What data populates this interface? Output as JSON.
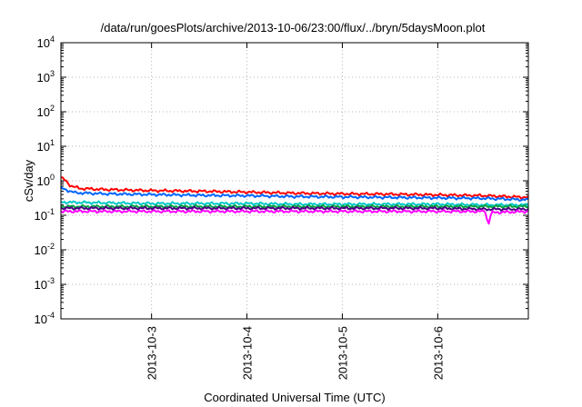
{
  "chart_data": {
    "type": "line",
    "title": "/data/run/goesPlots/archive/2013-10-06/23:00/flux/../bryn/5daysMoon.plot",
    "xlabel": "Coordinated Universal Time (UTC)",
    "ylabel": "cSv/day",
    "y_scale": "log",
    "ylim": [
      0.0001,
      10000
    ],
    "y_ticks": [
      {
        "value": 0.0001,
        "base": "10",
        "exp": "-4"
      },
      {
        "value": 0.001,
        "base": "10",
        "exp": "-3"
      },
      {
        "value": 0.01,
        "base": "10",
        "exp": "-2"
      },
      {
        "value": 0.1,
        "base": "10",
        "exp": "-1"
      },
      {
        "value": 1,
        "base": "10",
        "exp": "0"
      },
      {
        "value": 10,
        "base": "10",
        "exp": "1"
      },
      {
        "value": 100,
        "base": "10",
        "exp": "2"
      },
      {
        "value": 1000,
        "base": "10",
        "exp": "3"
      },
      {
        "value": 10000,
        "base": "10",
        "exp": "4"
      }
    ],
    "xlim_days": [
      2.05,
      6.95
    ],
    "x_ticks": [
      {
        "value": 3,
        "label": "2013-10-3"
      },
      {
        "value": 4,
        "label": "2013-10-4"
      },
      {
        "value": 5,
        "label": "2013-10-5"
      },
      {
        "value": 6,
        "label": "2013-10-6"
      }
    ],
    "grid": true,
    "legend": "none",
    "series": [
      {
        "color": "#ff0000",
        "points": [
          [
            2.05,
            1.25
          ],
          [
            2.1,
            1.0
          ],
          [
            2.15,
            0.72
          ],
          [
            2.25,
            0.6
          ],
          [
            2.5,
            0.56
          ],
          [
            3.0,
            0.52
          ],
          [
            3.5,
            0.5
          ],
          [
            4.0,
            0.47
          ],
          [
            4.5,
            0.44
          ],
          [
            5.0,
            0.42
          ],
          [
            5.5,
            0.41
          ],
          [
            6.0,
            0.39
          ],
          [
            6.5,
            0.37
          ],
          [
            6.95,
            0.33
          ]
        ]
      },
      {
        "color": "#0066ff",
        "points": [
          [
            2.05,
            0.62
          ],
          [
            2.1,
            0.55
          ],
          [
            2.2,
            0.45
          ],
          [
            2.5,
            0.42
          ],
          [
            3.0,
            0.4
          ],
          [
            3.5,
            0.38
          ],
          [
            4.0,
            0.37
          ],
          [
            4.5,
            0.35
          ],
          [
            5.0,
            0.34
          ],
          [
            5.5,
            0.33
          ],
          [
            6.0,
            0.32
          ],
          [
            6.5,
            0.31
          ],
          [
            6.95,
            0.28
          ]
        ]
      },
      {
        "color": "#00c8c8",
        "points": [
          [
            2.05,
            0.24
          ],
          [
            2.5,
            0.23
          ],
          [
            3.0,
            0.22
          ],
          [
            3.5,
            0.22
          ],
          [
            4.0,
            0.22
          ],
          [
            4.5,
            0.21
          ],
          [
            5.0,
            0.21
          ],
          [
            5.5,
            0.21
          ],
          [
            6.0,
            0.21
          ],
          [
            6.5,
            0.2
          ],
          [
            6.95,
            0.2
          ]
        ]
      },
      {
        "color": "#00a040",
        "points": [
          [
            2.05,
            0.18
          ],
          [
            2.5,
            0.18
          ],
          [
            3.0,
            0.18
          ],
          [
            3.5,
            0.18
          ],
          [
            4.0,
            0.18
          ],
          [
            4.5,
            0.18
          ],
          [
            5.0,
            0.18
          ],
          [
            5.5,
            0.18
          ],
          [
            6.0,
            0.18
          ],
          [
            6.5,
            0.18
          ],
          [
            6.95,
            0.18
          ]
        ]
      },
      {
        "color": "#4b0082",
        "points": [
          [
            2.05,
            0.16
          ],
          [
            2.5,
            0.16
          ],
          [
            3.0,
            0.16
          ],
          [
            3.5,
            0.16
          ],
          [
            4.0,
            0.16
          ],
          [
            4.5,
            0.16
          ],
          [
            5.0,
            0.16
          ],
          [
            5.5,
            0.16
          ],
          [
            6.0,
            0.16
          ],
          [
            6.5,
            0.15
          ],
          [
            6.95,
            0.15
          ]
        ]
      },
      {
        "color": "#ff00ff",
        "points": [
          [
            2.05,
            0.13
          ],
          [
            2.5,
            0.13
          ],
          [
            3.0,
            0.13
          ],
          [
            3.5,
            0.13
          ],
          [
            4.0,
            0.13
          ],
          [
            4.5,
            0.13
          ],
          [
            5.0,
            0.13
          ],
          [
            5.5,
            0.13
          ],
          [
            6.0,
            0.13
          ],
          [
            6.5,
            0.13
          ],
          [
            6.53,
            0.05
          ],
          [
            6.56,
            0.12
          ],
          [
            6.95,
            0.13
          ]
        ]
      }
    ]
  }
}
